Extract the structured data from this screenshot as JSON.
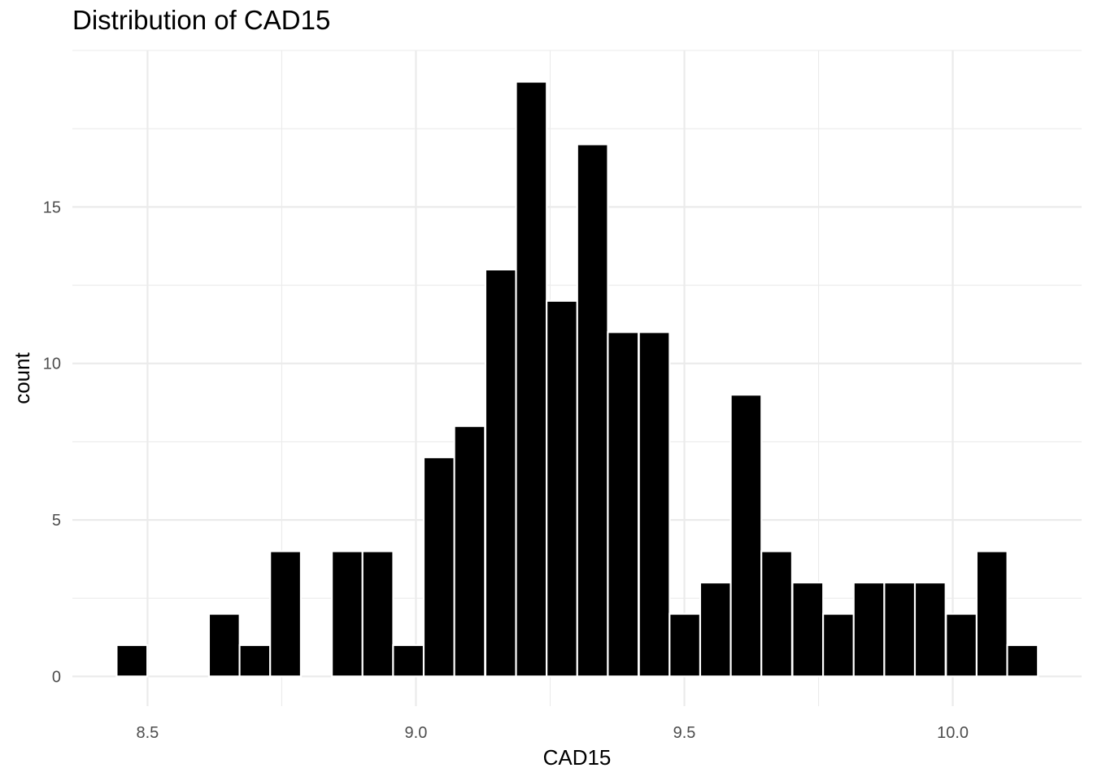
{
  "chart_data": {
    "type": "bar",
    "title": "Distribution of CAD15",
    "xlabel": "CAD15",
    "ylabel": "count",
    "bar_color": "#000000",
    "bar_outline": "#ffffff",
    "grid": true,
    "grid_color": "#ebebeb",
    "background": "#ffffff",
    "xlim": [
      8.36,
      10.24
    ],
    "ylim": [
      -0.95,
      20.0
    ],
    "x_ticks": [
      {
        "value": 8.5,
        "label": "8.5"
      },
      {
        "value": 9.0,
        "label": "9.0"
      },
      {
        "value": 9.5,
        "label": "9.5"
      },
      {
        "value": 10.0,
        "label": "10.0"
      }
    ],
    "y_ticks": [
      {
        "value": 0,
        "label": "0"
      },
      {
        "value": 5,
        "label": "5"
      },
      {
        "value": 10,
        "label": "10"
      },
      {
        "value": 15,
        "label": "15"
      }
    ],
    "bin_width": 0.0572,
    "bins": [
      {
        "x": 8.471,
        "count": 1
      },
      {
        "x": 8.528,
        "count": 0
      },
      {
        "x": 8.586,
        "count": 0
      },
      {
        "x": 8.643,
        "count": 2
      },
      {
        "x": 8.7,
        "count": 1
      },
      {
        "x": 8.757,
        "count": 4
      },
      {
        "x": 8.814,
        "count": 0
      },
      {
        "x": 8.872,
        "count": 4
      },
      {
        "x": 8.929,
        "count": 4
      },
      {
        "x": 8.986,
        "count": 1
      },
      {
        "x": 9.043,
        "count": 7
      },
      {
        "x": 9.1,
        "count": 8
      },
      {
        "x": 9.158,
        "count": 13
      },
      {
        "x": 9.215,
        "count": 19
      },
      {
        "x": 9.272,
        "count": 12
      },
      {
        "x": 9.329,
        "count": 17
      },
      {
        "x": 9.386,
        "count": 11
      },
      {
        "x": 9.444,
        "count": 11
      },
      {
        "x": 9.501,
        "count": 2
      },
      {
        "x": 9.558,
        "count": 3
      },
      {
        "x": 9.615,
        "count": 9
      },
      {
        "x": 9.672,
        "count": 4
      },
      {
        "x": 9.73,
        "count": 3
      },
      {
        "x": 9.787,
        "count": 2
      },
      {
        "x": 9.844,
        "count": 3
      },
      {
        "x": 9.901,
        "count": 3
      },
      {
        "x": 9.958,
        "count": 3
      },
      {
        "x": 10.016,
        "count": 2
      },
      {
        "x": 10.073,
        "count": 4
      },
      {
        "x": 10.13,
        "count": 1
      }
    ]
  }
}
